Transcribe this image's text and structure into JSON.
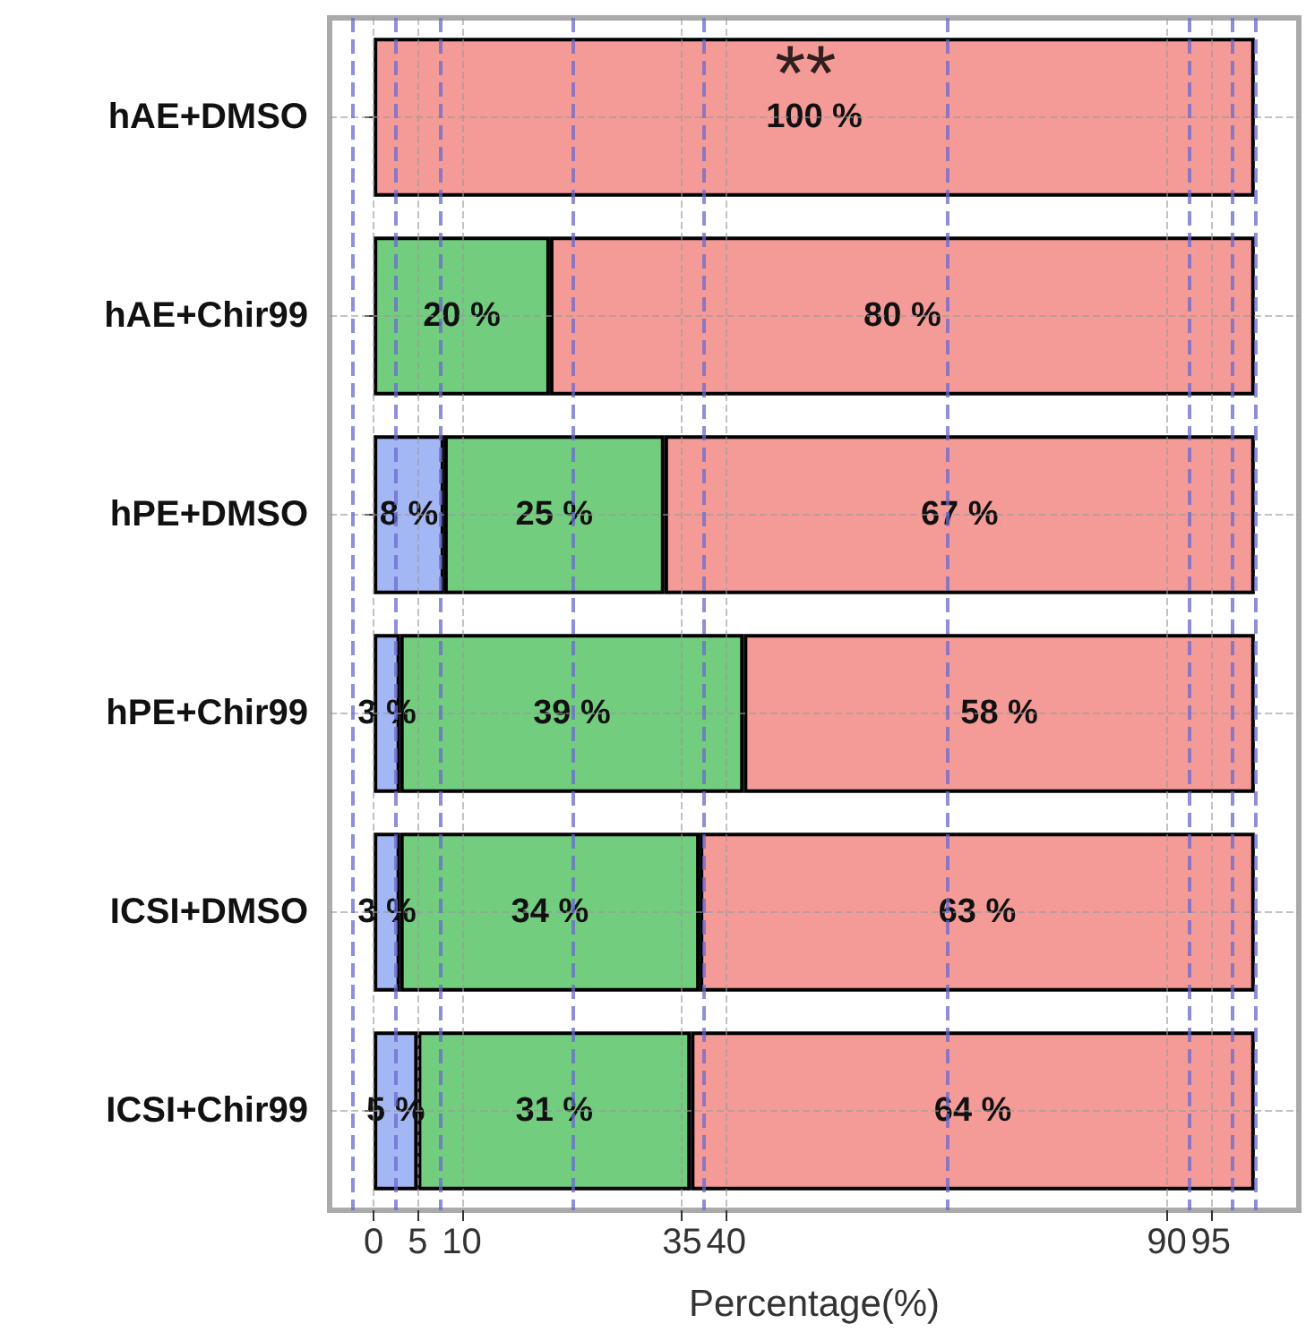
{
  "chart_data": {
    "type": "bar",
    "orientation": "horizontal",
    "stacked": true,
    "xlabel": "Percentage(%)",
    "categories": [
      "hAE+DMSO",
      "hAE+Chir99",
      "hPE+DMSO",
      "hPE+Chir99",
      "ICSI+DMSO",
      "ICSI+Chir99"
    ],
    "series": [
      {
        "color": "#a4b7f5",
        "values": [
          0,
          0,
          8,
          3,
          3,
          5
        ],
        "value_labels": [
          null,
          null,
          "8 %",
          "3 %",
          "3 %",
          "5 %"
        ]
      },
      {
        "color": "#72cd7e",
        "values": [
          0,
          20,
          25,
          39,
          34,
          31
        ],
        "value_labels": [
          null,
          "20 %",
          "25 %",
          "39 %",
          "34 %",
          "31 %"
        ]
      },
      {
        "color": "#f59b97",
        "values": [
          100,
          80,
          67,
          58,
          63,
          64
        ],
        "value_labels": [
          "100 %",
          "80 %",
          "67 %",
          "58 %",
          "63 %",
          "64 %"
        ]
      }
    ],
    "xlim": [
      -5,
      105
    ],
    "xticks": [
      0,
      5,
      10,
      35,
      40,
      90,
      95
    ],
    "grid": true,
    "ref_lines": [
      {
        "axis": "x",
        "value": -2.5,
        "color": "#6a6acc",
        "line_style": "dashed"
      },
      {
        "axis": "x",
        "value": 2.5,
        "color": "#6a6acc",
        "line_style": "dashed"
      },
      {
        "axis": "x",
        "value": 7.5,
        "color": "#6a6acc",
        "line_style": "dashed"
      },
      {
        "axis": "x",
        "value": 22.5,
        "color": "#6a6acc",
        "line_style": "dashed"
      },
      {
        "axis": "x",
        "value": 37.5,
        "color": "#6a6acc",
        "line_style": "dashed"
      },
      {
        "axis": "x",
        "value": 65,
        "color": "#6a6acc",
        "line_style": "dashed"
      },
      {
        "axis": "x",
        "value": 92.5,
        "color": "#6a6acc",
        "line_style": "dashed"
      },
      {
        "axis": "x",
        "value": 97.5,
        "color": "#6a6acc",
        "line_style": "dashed"
      },
      {
        "axis": "x",
        "value": 100,
        "color": "#6a6acc",
        "line_style": "dashed"
      }
    ],
    "annotations": [
      {
        "text": "**",
        "x": 49,
        "y": "hAE+DMSO"
      }
    ]
  }
}
